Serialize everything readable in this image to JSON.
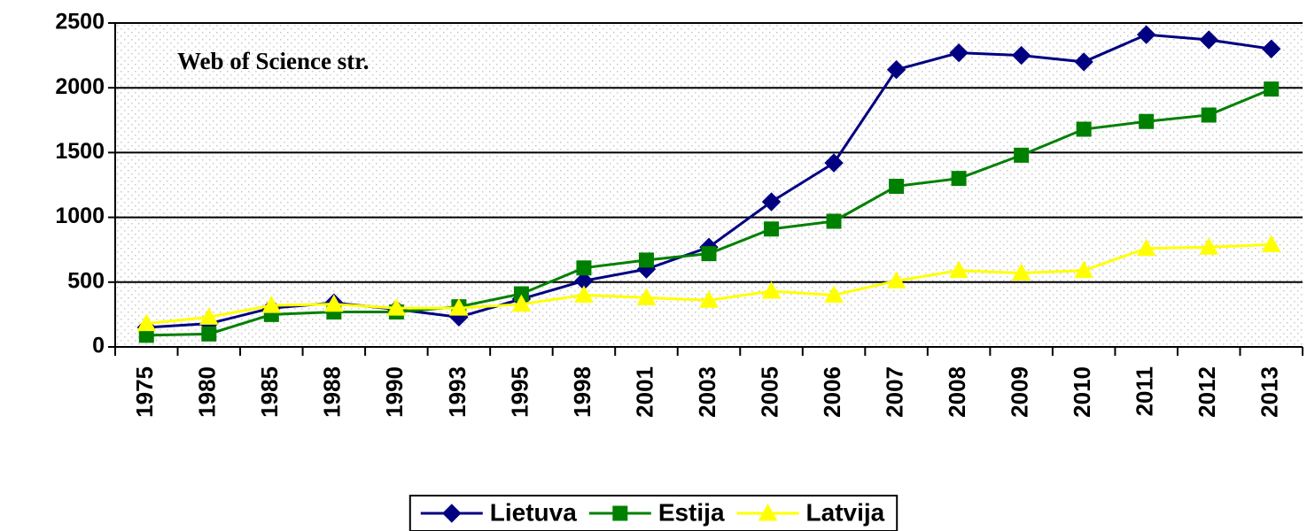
{
  "chart_data": {
    "type": "line",
    "annotation": "Web of Science str.",
    "categories": [
      "1975",
      "1980",
      "1985",
      "1988",
      "1990",
      "1993",
      "1995",
      "1998",
      "2001",
      "2003",
      "2005",
      "2006",
      "2007",
      "2008",
      "2009",
      "2010",
      "2011",
      "2012",
      "2013"
    ],
    "series": [
      {
        "name": "Lietuva",
        "color": "#000080",
        "marker": "diamond",
        "values": [
          150,
          180,
          300,
          340,
          290,
          230,
          370,
          510,
          600,
          770,
          1120,
          1420,
          2140,
          2270,
          2250,
          2200,
          2410,
          2370,
          2300
        ]
      },
      {
        "name": "Estija",
        "color": "#008000",
        "marker": "square",
        "values": [
          90,
          100,
          250,
          270,
          270,
          310,
          410,
          610,
          670,
          720,
          910,
          970,
          1240,
          1300,
          1480,
          1680,
          1740,
          1790,
          1990
        ]
      },
      {
        "name": "Latvija",
        "color": "#ffff00",
        "marker": "triangle",
        "values": [
          180,
          230,
          320,
          330,
          300,
          300,
          330,
          400,
          380,
          360,
          430,
          400,
          510,
          590,
          570,
          590,
          760,
          770,
          790
        ]
      }
    ],
    "ylim": [
      0,
      2500
    ],
    "yticks": [
      0,
      500,
      1000,
      1500,
      2000,
      2500
    ],
    "grid": true,
    "legend": "bottom"
  }
}
